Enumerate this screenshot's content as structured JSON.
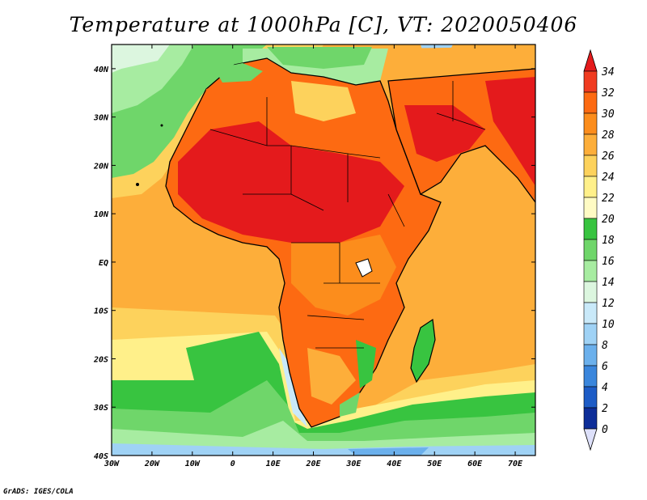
{
  "title": "Temperature at 1000hPa [C], VT: 2020050406",
  "credit": "GrADS: IGES/COLA",
  "map": {
    "region": "Africa, Arabia and Mediterranean",
    "lon_range": [
      -30,
      75
    ],
    "lat_range": [
      -40,
      45
    ],
    "lon_ticks": [
      "30W",
      "20W",
      "10W",
      "0",
      "10E",
      "20E",
      "30E",
      "40E",
      "50E",
      "60E",
      "70E"
    ],
    "lat_ticks": [
      "40N",
      "30N",
      "20N",
      "10N",
      "EQ",
      "10S",
      "20S",
      "30S",
      "40S"
    ]
  },
  "colorbar": {
    "labels": [
      "34",
      "32",
      "30",
      "28",
      "26",
      "24",
      "22",
      "20",
      "18",
      "16",
      "14",
      "12",
      "10",
      "8",
      "6",
      "4",
      "2",
      "0"
    ],
    "colors": [
      "#e41a1c",
      "#f03b20",
      "#fd6a12",
      "#fc8d1c",
      "#fdae3a",
      "#fdd25c",
      "#fff08a",
      "#fffbc4",
      "#38c440",
      "#6fd66a",
      "#a7eca1",
      "#dcf6df",
      "#c9e9f9",
      "#9fd2f5",
      "#6bb0ec",
      "#3a86dc",
      "#1d5cc6",
      "#0d2d98",
      "#0a1a6e"
    ],
    "arrow_top_color": "#e41a1c",
    "arrow_bottom_color": "#dde0fa"
  }
}
